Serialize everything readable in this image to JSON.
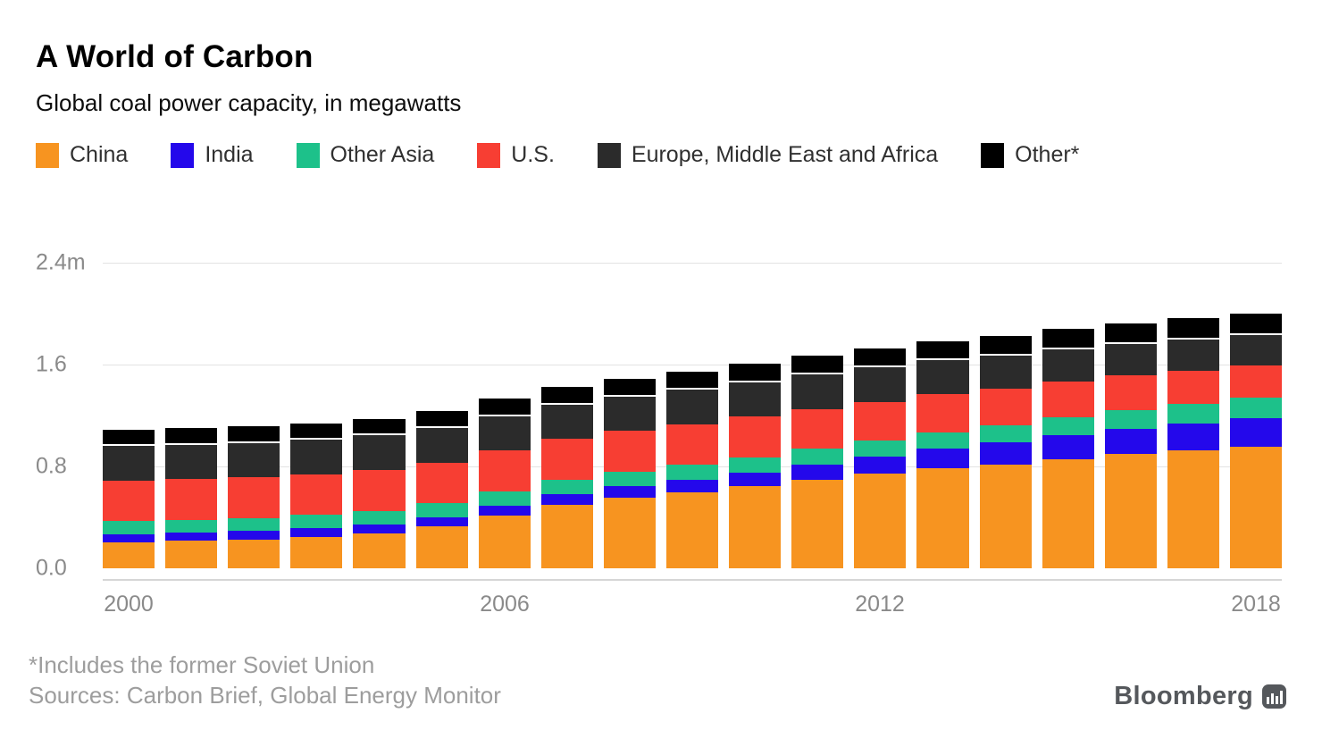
{
  "chart_data": {
    "type": "bar",
    "stacked": true,
    "title": "A World of Carbon",
    "subtitle": "Global coal power capacity, in megawatts",
    "xlabel": "",
    "ylabel": "",
    "unit": "millions of megawatts",
    "grid": "horizontal",
    "legend_position": "top",
    "ylim": [
      0,
      2.4
    ],
    "yticks": [
      {
        "v": 0,
        "label": "0.0"
      },
      {
        "v": 0.8,
        "label": "0.8"
      },
      {
        "v": 1.6,
        "label": "1.6"
      },
      {
        "v": 2.4,
        "label": "2.4m"
      }
    ],
    "x": [
      2000,
      2001,
      2002,
      2003,
      2004,
      2005,
      2006,
      2007,
      2008,
      2009,
      2010,
      2011,
      2012,
      2013,
      2014,
      2015,
      2016,
      2017,
      2018
    ],
    "xticks": [
      2000,
      2006,
      2012,
      2018
    ],
    "series": [
      {
        "id": "china",
        "name": "China",
        "color": "#f79420",
        "values": [
          0.21,
          0.22,
          0.23,
          0.25,
          0.28,
          0.33,
          0.42,
          0.5,
          0.56,
          0.6,
          0.65,
          0.7,
          0.75,
          0.79,
          0.82,
          0.86,
          0.9,
          0.93,
          0.96
        ]
      },
      {
        "id": "india",
        "name": "India",
        "color": "#2408eb",
        "values": [
          0.062,
          0.064,
          0.066,
          0.068,
          0.07,
          0.073,
          0.077,
          0.082,
          0.088,
          0.095,
          0.105,
          0.115,
          0.13,
          0.15,
          0.17,
          0.19,
          0.2,
          0.21,
          0.22
        ]
      },
      {
        "id": "other-asia",
        "name": "Other Asia",
        "color": "#1dc18a",
        "values": [
          0.1,
          0.1,
          0.1,
          0.105,
          0.105,
          0.11,
          0.11,
          0.115,
          0.115,
          0.12,
          0.12,
          0.125,
          0.125,
          0.13,
          0.135,
          0.14,
          0.145,
          0.155,
          0.165
        ]
      },
      {
        "id": "us",
        "name": "U.S.",
        "color": "#f73e33",
        "values": [
          0.32,
          0.32,
          0.32,
          0.32,
          0.32,
          0.32,
          0.32,
          0.32,
          0.32,
          0.32,
          0.32,
          0.315,
          0.305,
          0.3,
          0.29,
          0.28,
          0.27,
          0.26,
          0.25
        ]
      },
      {
        "id": "emea",
        "name": "Europe, Middle East and Africa",
        "color": "#2b2b2b",
        "values": [
          0.27,
          0.27,
          0.27,
          0.27,
          0.27,
          0.27,
          0.27,
          0.27,
          0.27,
          0.27,
          0.27,
          0.27,
          0.27,
          0.265,
          0.26,
          0.255,
          0.25,
          0.245,
          0.24
        ]
      },
      {
        "id": "other",
        "name": "Other*",
        "color": "#000000",
        "values": [
          0.13,
          0.13,
          0.13,
          0.13,
          0.132,
          0.134,
          0.136,
          0.138,
          0.14,
          0.142,
          0.145,
          0.148,
          0.15,
          0.152,
          0.155,
          0.158,
          0.16,
          0.165,
          0.17
        ]
      }
    ]
  },
  "footnote": {
    "line1": "*Includes the former Soviet Union",
    "line2": "Sources: Carbon Brief, Global Energy Monitor"
  },
  "branding": {
    "name": "Bloomberg"
  },
  "colors": {
    "background": "#ffffff",
    "gridline": "#e3e3e3",
    "axis_text": "#8a8a8a",
    "footnote_text": "#9d9d9d",
    "logo": "#55585c"
  }
}
